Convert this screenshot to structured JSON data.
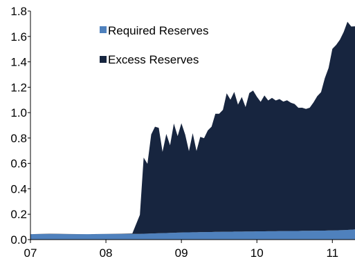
{
  "chart_data": {
    "type": "area",
    "stacked": true,
    "title": "",
    "xlabel": "",
    "ylabel": "",
    "ylim": [
      0,
      1.8
    ],
    "y_ticks": [
      0.0,
      0.2,
      0.4,
      0.6,
      0.8,
      1.0,
      1.2,
      1.4,
      1.6,
      1.8
    ],
    "y_tick_labels": [
      "0.0",
      "0.2",
      "0.4",
      "0.6",
      "0.8",
      "1.0",
      "1.2",
      "1.4",
      "1.6",
      "1.8"
    ],
    "xlim": [
      2007.0,
      2011.3
    ],
    "x_ticks": [
      2007,
      2008,
      2009,
      2010,
      2011
    ],
    "x_tick_labels": [
      "07",
      "08",
      "09",
      "10",
      "11"
    ],
    "x": [
      2007.0,
      2007.25,
      2007.5,
      2007.75,
      2008.0,
      2008.2,
      2008.35,
      2008.45,
      2008.5,
      2008.55,
      2008.6,
      2008.65,
      2008.7,
      2008.75,
      2008.8,
      2008.85,
      2008.9,
      2008.95,
      2009.0,
      2009.05,
      2009.1,
      2009.15,
      2009.2,
      2009.25,
      2009.3,
      2009.35,
      2009.4,
      2009.45,
      2009.5,
      2009.55,
      2009.6,
      2009.65,
      2009.7,
      2009.75,
      2009.8,
      2009.85,
      2009.9,
      2009.95,
      2010.0,
      2010.05,
      2010.1,
      2010.15,
      2010.2,
      2010.25,
      2010.3,
      2010.35,
      2010.4,
      2010.45,
      2010.5,
      2010.55,
      2010.6,
      2010.65,
      2010.7,
      2010.75,
      2010.8,
      2010.85,
      2010.9,
      2010.95,
      2011.0,
      2011.05,
      2011.1,
      2011.15,
      2011.2,
      2011.25,
      2011.3
    ],
    "legend": {
      "position": "top-left"
    },
    "grid": false,
    "series": [
      {
        "name": "Required Reserves",
        "color": "#4f81bd",
        "values": [
          0.043,
          0.044,
          0.043,
          0.043,
          0.044,
          0.044,
          0.045,
          0.045,
          0.046,
          0.047,
          0.048,
          0.049,
          0.05,
          0.051,
          0.052,
          0.053,
          0.054,
          0.055,
          0.056,
          0.057,
          0.057,
          0.058,
          0.058,
          0.059,
          0.059,
          0.06,
          0.06,
          0.061,
          0.061,
          0.062,
          0.062,
          0.062,
          0.063,
          0.063,
          0.063,
          0.064,
          0.064,
          0.064,
          0.065,
          0.065,
          0.065,
          0.066,
          0.066,
          0.066,
          0.067,
          0.067,
          0.067,
          0.068,
          0.068,
          0.068,
          0.069,
          0.069,
          0.069,
          0.07,
          0.07,
          0.071,
          0.071,
          0.072,
          0.072,
          0.073,
          0.074,
          0.075,
          0.076,
          0.078,
          0.08
        ]
      },
      {
        "name": "Excess Reserves",
        "color": "#17253f",
        "values": [
          0.0,
          0.002,
          0.001,
          0.0,
          0.001,
          0.002,
          0.003,
          0.15,
          0.6,
          0.55,
          0.78,
          0.84,
          0.83,
          0.64,
          0.78,
          0.69,
          0.86,
          0.76,
          0.86,
          0.77,
          0.64,
          0.78,
          0.64,
          0.75,
          0.74,
          0.8,
          0.83,
          0.93,
          0.93,
          0.96,
          1.09,
          1.04,
          1.1,
          1.0,
          1.06,
          0.98,
          1.09,
          1.11,
          1.06,
          1.02,
          1.07,
          1.03,
          1.05,
          1.03,
          1.04,
          1.02,
          1.03,
          1.01,
          1.0,
          0.97,
          0.97,
          0.96,
          0.97,
          1.01,
          1.06,
          1.09,
          1.2,
          1.28,
          1.43,
          1.46,
          1.5,
          1.56,
          1.64,
          1.6,
          1.6
        ]
      }
    ]
  }
}
